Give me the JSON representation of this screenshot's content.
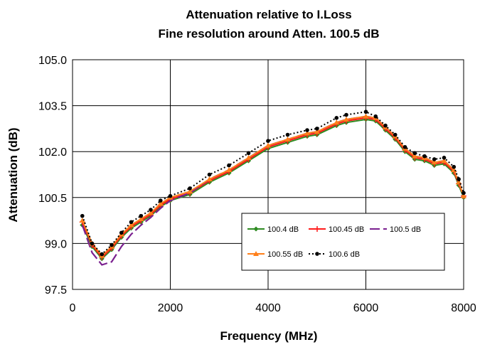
{
  "chart_data": {
    "type": "line",
    "title": "Attenuation relative to I.Loss",
    "subtitle": "Fine resolution around Atten. 100.5 dB",
    "xlabel": "Frequency (MHz)",
    "ylabel": "Attenuation (dB)",
    "xlim": [
      0,
      8000
    ],
    "ylim": [
      97.5,
      105.0
    ],
    "x_ticks": [
      "0",
      "2000",
      "4000",
      "6000",
      "8000"
    ],
    "y_ticks": [
      "97.5",
      "99.0",
      "100.5",
      "102.0",
      "103.5",
      "105.0"
    ],
    "grid": true,
    "legend_position": "lower-right",
    "x": [
      200,
      400,
      600,
      800,
      1000,
      1200,
      1400,
      1600,
      1800,
      2000,
      2400,
      2800,
      3200,
      3600,
      4000,
      4400,
      4800,
      5000,
      5400,
      5600,
      6000,
      6200,
      6400,
      6600,
      6800,
      7000,
      7200,
      7400,
      7600,
      7800,
      7900,
      8000
    ],
    "series": [
      {
        "name": "100.4 dB",
        "color": "#2e8b22",
        "marker": "diamond",
        "dash": "",
        "values": [
          99.6,
          98.9,
          98.5,
          98.8,
          99.2,
          99.5,
          99.7,
          99.9,
          100.2,
          100.4,
          100.6,
          101.0,
          101.3,
          101.7,
          102.1,
          102.3,
          102.5,
          102.55,
          102.85,
          102.95,
          103.05,
          103.0,
          102.7,
          102.4,
          102.0,
          101.75,
          101.7,
          101.55,
          101.6,
          101.3,
          100.9,
          100.5
        ]
      },
      {
        "name": "100.45 dB",
        "color": "#ff1a1a",
        "marker": "plus",
        "dash": "",
        "values": [
          99.7,
          98.95,
          98.55,
          98.85,
          99.25,
          99.55,
          99.75,
          99.95,
          100.25,
          100.45,
          100.65,
          101.05,
          101.35,
          101.75,
          102.15,
          102.35,
          102.55,
          102.6,
          102.9,
          103.0,
          103.1,
          103.05,
          102.75,
          102.45,
          102.05,
          101.8,
          101.75,
          101.6,
          101.65,
          101.35,
          100.95,
          100.55
        ]
      },
      {
        "name": "100.5 dB",
        "color": "#7a1f8f",
        "marker": "none",
        "dash": "14 5",
        "values": [
          99.6,
          98.7,
          98.3,
          98.4,
          98.9,
          99.3,
          99.6,
          99.85,
          100.15,
          100.4,
          100.65,
          101.1,
          101.4,
          101.8,
          102.2,
          102.4,
          102.6,
          102.65,
          102.95,
          103.05,
          103.15,
          103.1,
          102.8,
          102.5,
          102.1,
          101.85,
          101.8,
          101.65,
          101.7,
          101.4,
          101.0,
          100.6
        ]
      },
      {
        "name": "100.55 dB",
        "color": "#ff7f1a",
        "marker": "triangle",
        "dash": "",
        "values": [
          99.75,
          99.0,
          98.6,
          98.9,
          99.3,
          99.6,
          99.8,
          100.0,
          100.3,
          100.5,
          100.7,
          101.1,
          101.4,
          101.8,
          102.2,
          102.4,
          102.6,
          102.65,
          102.95,
          103.05,
          103.15,
          103.1,
          102.8,
          102.5,
          102.1,
          101.85,
          101.8,
          101.65,
          101.7,
          101.4,
          101.0,
          100.55
        ]
      },
      {
        "name": "100.6 dB",
        "color": "#000000",
        "marker": "circle",
        "dash": "2 3",
        "values": [
          99.9,
          99.0,
          98.65,
          98.95,
          99.35,
          99.7,
          99.9,
          100.1,
          100.4,
          100.55,
          100.8,
          101.25,
          101.55,
          101.95,
          102.35,
          102.55,
          102.7,
          102.75,
          103.1,
          103.2,
          103.3,
          103.15,
          102.85,
          102.55,
          102.15,
          101.95,
          101.85,
          101.75,
          101.8,
          101.5,
          101.1,
          100.65
        ]
      }
    ]
  }
}
